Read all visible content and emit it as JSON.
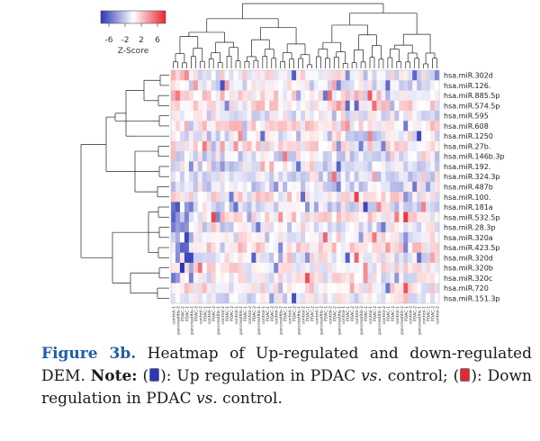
{
  "chart_data": {
    "type": "heatmap",
    "color_key": {
      "title": "Z-Score",
      "ticks": [
        "-6",
        "-2",
        "2",
        "6"
      ],
      "low_color": "#2a36b8",
      "mid_color": "#ffffff",
      "high_color": "#e8262f"
    },
    "rows": [
      "hsa.miR.302d",
      "hsa.miR.126.",
      "hsa.miR.885.5p",
      "hsa.miR.574.5p",
      "hsa.miR.595",
      "hsa.miR.608",
      "hsa.miR.1250",
      "hsa.miR.27b.",
      "hsa.miR.146b.3p",
      "hsa.miR.192.",
      "hsa.miR.324.3p",
      "hsa.miR.487b",
      "hsa.miR.100.",
      "hsa.miR.181a",
      "hsa.miR.532.5p",
      "hsa.miR.28.3p",
      "hsa.miR.320a",
      "hsa.miR.423.5p",
      "hsa.miR.320d",
      "hsa.miR.320b",
      "hsa.miR.320c",
      "hsa.miR.720",
      "hsa.miR.151.3p"
    ],
    "columns": [
      "control-1",
      "pancreatitis-2",
      "PDAC-2",
      "PDAC-1",
      "pancreatitis-1",
      "PDAC-2",
      "control-2",
      "PDAC-1",
      "control-1",
      "PDAC-2",
      "pancreatitis-1",
      "control-2",
      "PDAC-1",
      "PDAC-2",
      "control-1",
      "pancreatitis-2",
      "PDAC-1",
      "control-2",
      "PDAC-2",
      "pancreatitis-1",
      "control-1",
      "PDAC-1",
      "PDAC-2",
      "control-2",
      "pancreatitis-2",
      "PDAC-1",
      "control-1",
      "PDAC-2",
      "pancreatitis-1",
      "control-2",
      "PDAC-1",
      "PDAC-2",
      "control-1",
      "pancreatitis-2",
      "PDAC-1",
      "control-2",
      "PDAC-2",
      "pancreatitis-1",
      "control-1",
      "PDAC-1",
      "PDAC-2",
      "control-2",
      "pancreatitis-2",
      "PDAC-1",
      "control-1",
      "PDAC-2",
      "pancreatitis-1",
      "control-2",
      "PDAC-1",
      "PDAC-2",
      "control-1",
      "pancreatitis-2",
      "PDAC-1",
      "control-2",
      "PDAC-2",
      "pancreatitis-1",
      "control-1",
      "PDAC-1",
      "PDAC-2",
      "control-2"
    ],
    "value_range": [
      -6,
      6
    ],
    "column_block_pattern_note": "",
    "row_dendrogram": true,
    "column_dendrogram": true
  },
  "caption": {
    "figure_label": "Figure 3b.",
    "text_1": " Heatmap of Up-regulated and down-regulated DEM. ",
    "note_label": "Note:",
    "text_2": " (",
    "text_3": "): Up regulation in PDAC ",
    "vs_1": "vs.",
    "text_4": " control; (",
    "text_5": "): Down regulation in PDAC ",
    "vs_2": "vs.",
    "text_6": " control.",
    "swatch_up_color": "#2a36b8",
    "swatch_down_color": "#e8262f"
  }
}
